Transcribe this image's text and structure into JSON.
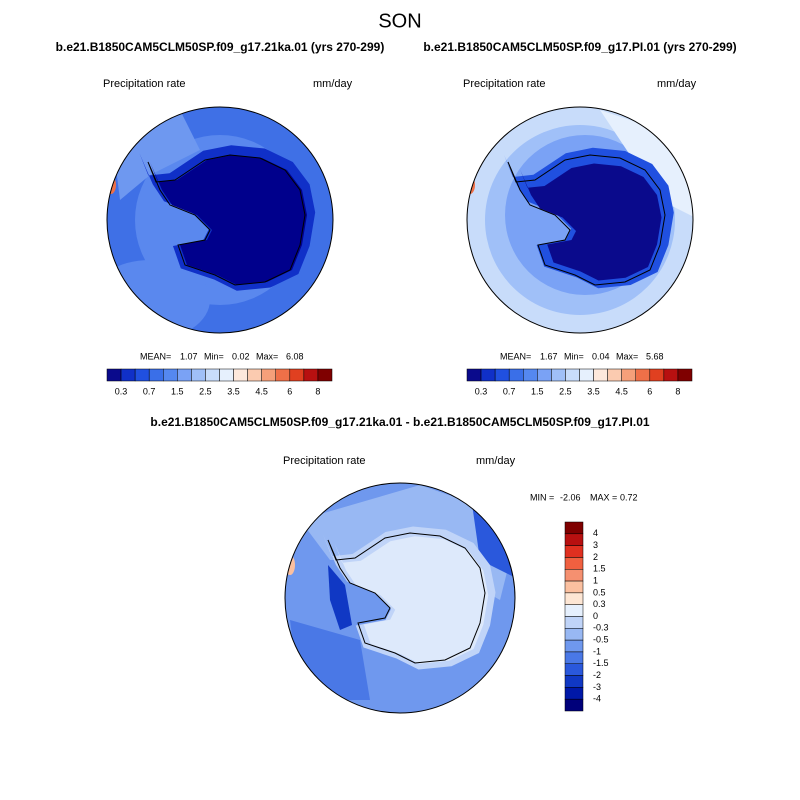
{
  "title": "SON",
  "panels": [
    {
      "title": "b.e21.B1850CAM5CLM50SP.f09_g17.21ka.01 (yrs 270-299)",
      "left_label": "Precipitation rate",
      "right_label": "mm/day",
      "stats": {
        "mean_label": "MEAN=",
        "mean": 1.07,
        "min_label": "Min=",
        "min": 0.02,
        "max_label": "Max=",
        "max": 6.08
      },
      "colorbar_labels": [
        0.3,
        0.7,
        1.5,
        2.5,
        3.5,
        4.5,
        6,
        8
      ]
    },
    {
      "title": "b.e21.B1850CAM5CLM50SP.f09_g17.PI.01 (yrs 270-299)",
      "left_label": "Precipitation rate",
      "right_label": "mm/day",
      "stats": {
        "mean_label": "MEAN=",
        "mean": 1.67,
        "min_label": "Min=",
        "min": 0.04,
        "max_label": "Max=",
        "max": 5.68
      },
      "colorbar_labels": [
        0.3,
        0.7,
        1.5,
        2.5,
        3.5,
        4.5,
        6,
        8
      ]
    }
  ],
  "difference": {
    "title": "b.e21.B1850CAM5CLM50SP.f09_g17.21ka.01 - b.e21.B1850CAM5CLM50SP.f09_g17.PI.01",
    "left_label": "Precipitation rate",
    "right_label": "mm/day",
    "stats": {
      "min_label": "MIN =",
      "min": -2.06,
      "max_label": "MAX =",
      "max": 0.72
    },
    "colorbar_labels": [
      4,
      3,
      2,
      1.5,
      1,
      0.5,
      0.3,
      0,
      -0.3,
      -0.5,
      -1,
      -1.5,
      -2,
      -3,
      -4
    ]
  },
  "colorbar_colors": [
    "#0a0a8c",
    "#1030c8",
    "#2050e0",
    "#3a6fe8",
    "#5588f0",
    "#7aa2f5",
    "#a0c0f8",
    "#c8dcfa",
    "#e6f0fd",
    "#fde8dc",
    "#fbcbb0",
    "#f5a07a",
    "#ef7048",
    "#e04020",
    "#b81010",
    "#7f0000"
  ],
  "diff_colorbar_colors": [
    "#7f0000",
    "#b81010",
    "#e03020",
    "#f06040",
    "#f59070",
    "#fbc0a0",
    "#fde6d4",
    "#e6f0fd",
    "#c0d4f8",
    "#98b8f3",
    "#6f98ee",
    "#4a78e6",
    "#2a58dc",
    "#1038c4",
    "#0018a8",
    "#00007a"
  ]
}
